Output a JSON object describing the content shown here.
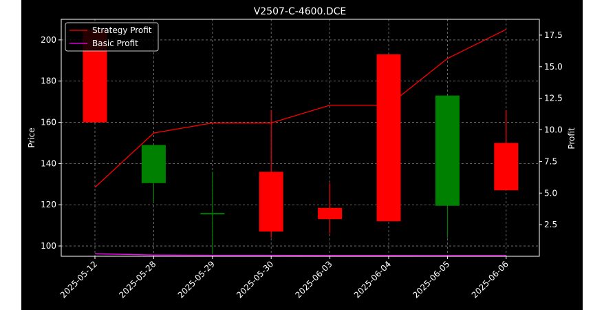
{
  "chart_data": {
    "type": "candlestick",
    "title": "V2507-C-4600.DCE",
    "ylabel_left": "Price",
    "ylabel_right": "Profit",
    "xlabel": "",
    "categories": [
      "2025-05-12",
      "2025-05-28",
      "2025-05-29",
      "2025-05-30",
      "2025-06-03",
      "2025-06-04",
      "2025-06-05",
      "2025-06-06"
    ],
    "ohlc": [
      {
        "open": 205,
        "high": 205,
        "low": 160,
        "close": 160
      },
      {
        "open": 130.5,
        "high": 149,
        "low": 121,
        "close": 149
      },
      {
        "open": 115.5,
        "high": 136,
        "low": 96,
        "close": 116
      },
      {
        "open": 136,
        "high": 166,
        "low": 104,
        "close": 107
      },
      {
        "open": 118.5,
        "high": 130.5,
        "low": 106,
        "close": 113
      },
      {
        "open": 193,
        "high": 193,
        "low": 112,
        "close": 112
      },
      {
        "open": 119.5,
        "high": 173,
        "low": 104,
        "close": 173
      },
      {
        "open": 150,
        "high": 166,
        "low": 127,
        "close": 127
      }
    ],
    "series": [
      {
        "name": "Strategy Profit",
        "axis": "right",
        "color": "#ff0000",
        "values": [
          5.45,
          9.75,
          10.55,
          10.55,
          11.95,
          11.95,
          15.65,
          17.95
        ]
      },
      {
        "name": "Basic Profit",
        "axis": "right",
        "color": "#ff00ff",
        "values": [
          0.2,
          0.1,
          0.08,
          0.08,
          0.06,
          0.06,
          0.05,
          0.05
        ]
      }
    ],
    "ylim_left": [
      95,
      210
    ],
    "yticks_left": [
      100,
      120,
      140,
      160,
      180,
      200
    ],
    "ylim_right": [
      0,
      18.75
    ],
    "yticks_right": [
      2.5,
      5.0,
      7.5,
      10.0,
      12.5,
      15.0,
      17.5
    ],
    "ytick_labels_right": [
      "2.5",
      "5.0",
      "7.5",
      "10.0",
      "12.5",
      "15.0",
      "17.5"
    ],
    "grid": true,
    "legend_position": "top-left",
    "colors": {
      "figure_bg": "#000000",
      "page_bg": "#ffffff",
      "up": "#008000",
      "down": "#ff0000",
      "text": "#ffffff",
      "grid": "#7f7f7f"
    }
  }
}
